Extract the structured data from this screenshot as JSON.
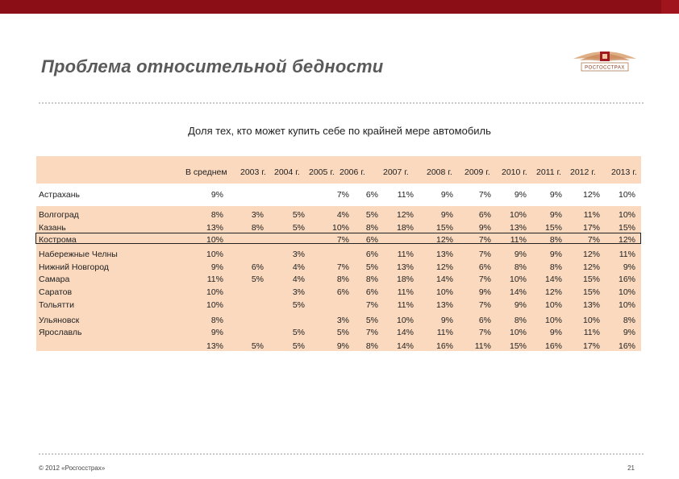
{
  "slide": {
    "title": "Проблема относительной бедности",
    "subtitle": "Доля тех, кто может купить себе по крайней мере автомобиль",
    "logo_text": "РОСГОССТРАХ",
    "footer": "© 2012 «Росгосстрах»",
    "page_number": "21"
  },
  "colors": {
    "top_bar": "#8b0e16",
    "table_band": "#fad9be",
    "title": "#5a5a5a"
  },
  "table": {
    "columns": [
      "В среднем",
      "2003 г.",
      "2004 г.",
      "2005 г.",
      "2006 г.",
      "2007 г.",
      "2008 г.",
      "2009 г.",
      "2010 г.",
      "2011 г.",
      "2012 г.",
      "2013 г."
    ],
    "rows": [
      {
        "city": "Астрахань",
        "values": [
          "9%",
          "",
          "",
          "7%",
          "6%",
          "11%",
          "9%",
          "7%",
          "9%",
          "9%",
          "12%",
          "10%"
        ]
      },
      {
        "city": "Волгоград",
        "values": [
          "8%",
          "3%",
          "5%",
          "4%",
          "5%",
          "12%",
          "9%",
          "6%",
          "10%",
          "9%",
          "11%",
          "10%"
        ]
      },
      {
        "city": "Казань",
        "values": [
          "13%",
          "8%",
          "5%",
          "10%",
          "8%",
          "18%",
          "15%",
          "9%",
          "13%",
          "15%",
          "17%",
          "15%"
        ]
      },
      {
        "city": "Кострома",
        "values": [
          "10%",
          "",
          "",
          "7%",
          "6%",
          "",
          "12%",
          "7%",
          "11%",
          "8%",
          "7%",
          "12%"
        ]
      },
      {
        "city": "Набережные Челны",
        "values": [
          "10%",
          "",
          "3%",
          "",
          "6%",
          "11%",
          "13%",
          "7%",
          "9%",
          "9%",
          "12%",
          "11%"
        ]
      },
      {
        "city": "Нижний Новгород",
        "values": [
          "9%",
          "6%",
          "4%",
          "7%",
          "5%",
          "13%",
          "12%",
          "6%",
          "8%",
          "8%",
          "12%",
          "9%"
        ]
      },
      {
        "city": "Самара",
        "values": [
          "11%",
          "5%",
          "4%",
          "8%",
          "8%",
          "18%",
          "14%",
          "7%",
          "10%",
          "14%",
          "15%",
          "16%"
        ]
      },
      {
        "city": "Саратов",
        "values": [
          "10%",
          "",
          "3%",
          "6%",
          "6%",
          "11%",
          "10%",
          "9%",
          "14%",
          "12%",
          "15%",
          "10%"
        ]
      },
      {
        "city": "Тольятти",
        "values": [
          "10%",
          "",
          "5%",
          "",
          "7%",
          "11%",
          "13%",
          "7%",
          "9%",
          "10%",
          "13%",
          "10%"
        ]
      },
      {
        "city": "Ульяновск",
        "values": [
          "8%",
          "",
          "",
          "3%",
          "5%",
          "10%",
          "9%",
          "6%",
          "8%",
          "10%",
          "10%",
          "8%"
        ]
      },
      {
        "city": "Ярославль",
        "values": [
          "9%",
          "",
          "5%",
          "5%",
          "7%",
          "14%",
          "11%",
          "7%",
          "10%",
          "9%",
          "11%",
          "9%"
        ]
      },
      {
        "city": "",
        "values": [
          "13%",
          "5%",
          "5%",
          "9%",
          "8%",
          "14%",
          "16%",
          "11%",
          "15%",
          "16%",
          "17%",
          "16%"
        ]
      }
    ]
  }
}
